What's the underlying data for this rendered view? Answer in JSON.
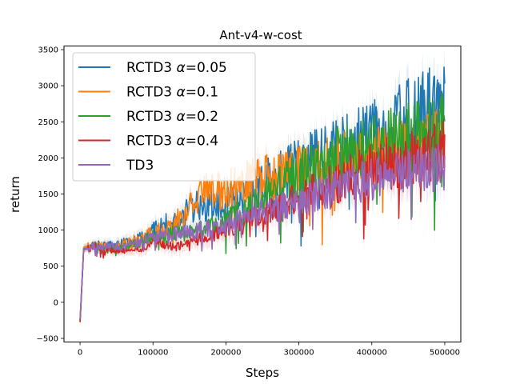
{
  "chart_data": {
    "type": "line",
    "title": "Ant-v4-w-cost",
    "xlabel": "Steps",
    "ylabel": "return",
    "xlim": [
      -22000,
      522000
    ],
    "ylim": [
      -550,
      3550
    ],
    "xticks": [
      0,
      100000,
      200000,
      300000,
      400000,
      500000
    ],
    "yticks": [
      -500,
      0,
      500,
      1000,
      1500,
      2000,
      2500,
      3000,
      3500
    ],
    "grid": false,
    "legend_position": "top-left",
    "series": [
      {
        "name": "RCTD3 α=0.05",
        "label_prefix": "RCTD3 ",
        "label_alpha": "α",
        "label_value": "=0.05",
        "color": "#1f77b4",
        "noise": 0.34,
        "band": 230,
        "x": [
          0,
          5000,
          20000,
          50000,
          80000,
          100000,
          130000,
          160000,
          200000,
          250000,
          300000,
          350000,
          400000,
          450000,
          500000
        ],
        "y": [
          -250,
          760,
          800,
          790,
          860,
          1000,
          1130,
          1330,
          1400,
          1640,
          1900,
          2080,
          2300,
          2550,
          2720
        ]
      },
      {
        "name": "RCTD3 α=0.1",
        "label_prefix": "RCTD3 ",
        "label_alpha": "α",
        "label_value": "=0.1",
        "color": "#ff7f0e",
        "noise": 0.32,
        "band": 260,
        "x": [
          0,
          5000,
          20000,
          50000,
          80000,
          100000,
          130000,
          150000,
          170000,
          200000,
          250000,
          300000,
          350000,
          400000,
          450000,
          500000
        ],
        "y": [
          -280,
          760,
          790,
          760,
          870,
          950,
          1080,
          1340,
          1520,
          1580,
          1720,
          1820,
          1950,
          2020,
          2080,
          2250
        ]
      },
      {
        "name": "RCTD3 α=0.2",
        "label_prefix": "RCTD3 ",
        "label_alpha": "α",
        "label_value": "=0.2",
        "color": "#2ca02c",
        "noise": 0.33,
        "band": 220,
        "x": [
          0,
          5000,
          20000,
          50000,
          80000,
          100000,
          130000,
          160000,
          200000,
          250000,
          300000,
          350000,
          400000,
          450000,
          500000
        ],
        "y": [
          -260,
          740,
          780,
          740,
          820,
          900,
          960,
          970,
          1130,
          1400,
          1780,
          2000,
          2160,
          2280,
          2380
        ]
      },
      {
        "name": "RCTD3 α=0.4",
        "label_prefix": "RCTD3 ",
        "label_alpha": "α",
        "label_value": "=0.4",
        "color": "#d62728",
        "noise": 0.31,
        "band": 210,
        "x": [
          0,
          5000,
          20000,
          50000,
          80000,
          100000,
          130000,
          160000,
          200000,
          250000,
          300000,
          350000,
          400000,
          450000,
          500000
        ],
        "y": [
          -270,
          730,
          780,
          710,
          730,
          840,
          760,
          860,
          1000,
          1200,
          1440,
          1650,
          1850,
          2000,
          2100
        ]
      },
      {
        "name": "TD3",
        "label_prefix": "TD3",
        "label_alpha": "",
        "label_value": "",
        "color": "#9467bd",
        "noise": 0.29,
        "band": 200,
        "x": [
          0,
          5000,
          20000,
          50000,
          80000,
          100000,
          130000,
          160000,
          200000,
          250000,
          300000,
          350000,
          400000,
          450000,
          500000
        ],
        "y": [
          -230,
          740,
          780,
          770,
          820,
          920,
          950,
          1000,
          1070,
          1250,
          1380,
          1560,
          1720,
          1840,
          1860
        ]
      }
    ]
  }
}
